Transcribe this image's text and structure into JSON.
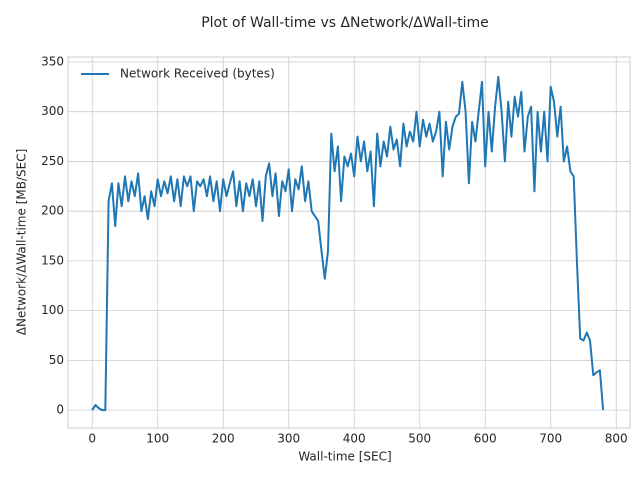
{
  "chart_data": {
    "type": "line",
    "title": "Plot of Wall-time vs ΔNetwork/ΔWall-time",
    "xlabel": "Wall-time [SEC]",
    "ylabel": "ΔNetwork/ΔWall-time [MB/SEC]",
    "x": [
      0,
      5,
      10,
      15,
      20,
      25,
      30,
      35,
      40,
      45,
      50,
      55,
      60,
      65,
      70,
      75,
      80,
      85,
      90,
      95,
      100,
      105,
      110,
      115,
      120,
      125,
      130,
      135,
      140,
      145,
      150,
      155,
      160,
      165,
      170,
      175,
      180,
      185,
      190,
      195,
      200,
      205,
      210,
      215,
      220,
      225,
      230,
      235,
      240,
      245,
      250,
      255,
      260,
      265,
      270,
      275,
      280,
      285,
      290,
      295,
      300,
      305,
      310,
      315,
      320,
      325,
      330,
      335,
      340,
      345,
      350,
      355,
      360,
      365,
      370,
      375,
      380,
      385,
      390,
      395,
      400,
      405,
      410,
      415,
      420,
      425,
      430,
      435,
      440,
      445,
      450,
      455,
      460,
      465,
      470,
      475,
      480,
      485,
      490,
      495,
      500,
      505,
      510,
      515,
      520,
      525,
      530,
      535,
      540,
      545,
      550,
      555,
      560,
      565,
      570,
      575,
      580,
      585,
      590,
      595,
      600,
      605,
      610,
      615,
      620,
      625,
      630,
      635,
      640,
      645,
      650,
      655,
      660,
      665,
      670,
      675,
      680,
      685,
      690,
      695,
      700,
      705,
      710,
      715,
      720,
      725,
      730,
      735,
      740,
      745,
      750,
      755,
      760,
      765,
      770,
      775,
      780
    ],
    "series": [
      {
        "name": "Network Received (bytes)",
        "color": "#1f77b4",
        "values": [
          0,
          5,
          2,
          0,
          0,
          210,
          228,
          185,
          228,
          205,
          235,
          210,
          230,
          215,
          238,
          200,
          215,
          192,
          220,
          205,
          232,
          215,
          230,
          218,
          235,
          210,
          232,
          205,
          235,
          225,
          235,
          200,
          230,
          225,
          232,
          215,
          235,
          210,
          230,
          200,
          232,
          215,
          228,
          240,
          205,
          230,
          200,
          228,
          215,
          232,
          205,
          230,
          190,
          235,
          248,
          215,
          238,
          195,
          230,
          220,
          242,
          200,
          232,
          222,
          245,
          210,
          230,
          200,
          195,
          190,
          160,
          132,
          160,
          278,
          240,
          265,
          210,
          255,
          245,
          258,
          235,
          275,
          250,
          270,
          240,
          260,
          205,
          278,
          245,
          270,
          255,
          285,
          262,
          272,
          245,
          288,
          265,
          280,
          270,
          300,
          265,
          292,
          275,
          288,
          270,
          280,
          300,
          235,
          290,
          262,
          285,
          295,
          298,
          330,
          300,
          228,
          290,
          270,
          300,
          330,
          245,
          300,
          260,
          305,
          335,
          300,
          250,
          310,
          275,
          315,
          295,
          320,
          260,
          295,
          305,
          220,
          300,
          260,
          300,
          250,
          325,
          310,
          275,
          305,
          250,
          265,
          240,
          235,
          150,
          72,
          70,
          78,
          70,
          35,
          38,
          40,
          0
        ]
      }
    ],
    "xlim": [
      -37,
      821
    ],
    "ylim": [
      -18,
      355
    ],
    "xticks": [
      0,
      100,
      200,
      300,
      400,
      500,
      600,
      700,
      800
    ],
    "yticks": [
      0,
      50,
      100,
      150,
      200,
      250,
      300,
      350
    ],
    "grid": true,
    "legend": "upper-left"
  }
}
